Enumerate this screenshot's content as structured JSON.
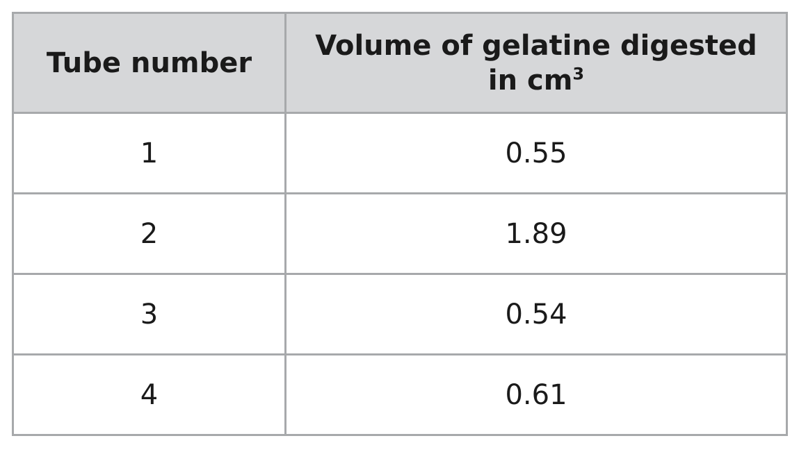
{
  "table": {
    "headers": {
      "tube": "Tube number",
      "volume_line1": "Volume of gelatine digested",
      "volume_line2_prefix": "in cm",
      "volume_unit_exponent": "3"
    },
    "rows": [
      {
        "tube": "1",
        "volume": "0.55"
      },
      {
        "tube": "2",
        "volume": "1.89"
      },
      {
        "tube": "3",
        "volume": "0.54"
      },
      {
        "tube": "4",
        "volume": "0.61"
      }
    ]
  },
  "colors": {
    "header_background": "#d6d7d9",
    "border": "#a7a9ab",
    "text": "#1a1a1a"
  }
}
